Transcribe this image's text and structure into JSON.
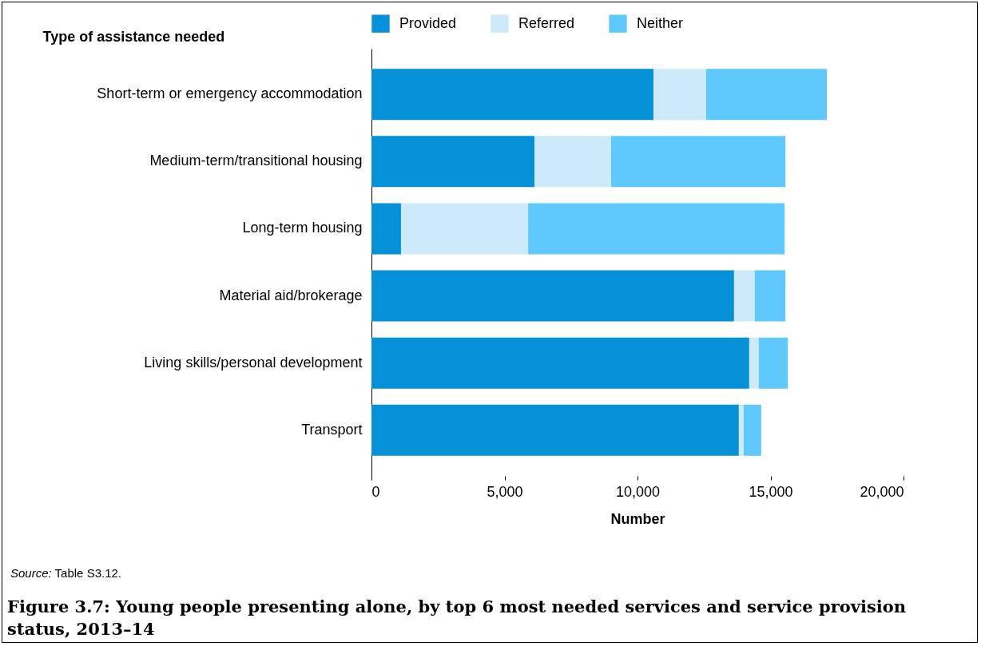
{
  "chart_data": {
    "type": "bar",
    "orientation": "horizontal",
    "stacked": true,
    "title": "Figure 3.7: Young people presenting alone, by top 6 most needed services and service provision status, 2013–14",
    "xlabel": "Number",
    "ylabel": "Type of assistance needed",
    "annotations": [
      "Source: Table S3.12."
    ],
    "categories": [
      "Short-term or emergency accommodation",
      "Medium-term/transitional housing",
      "Long-term housing",
      "Material aid/brokerage",
      "Living skills/personal development",
      "Transport"
    ],
    "series": [
      {
        "name": "Provided",
        "color": "#0590d8",
        "values": [
          10600,
          6130,
          1110,
          13630,
          14200,
          13810
        ]
      },
      {
        "name": "Referred",
        "color": "#cdeafa",
        "values": [
          1980,
          2880,
          4780,
          780,
          360,
          180
        ]
      },
      {
        "name": "Neither",
        "color": "#5fc8fc",
        "values": [
          4540,
          6550,
          9640,
          1150,
          1090,
          660
        ]
      }
    ],
    "xlim": [
      0,
      20000
    ],
    "xticks": [
      0,
      {
        "value": 5000,
        "label": "5,000"
      },
      {
        "value": 10000,
        "label": "10,000"
      },
      {
        "value": 15000,
        "label": "15,000"
      },
      {
        "value": 20000,
        "label": "20,000"
      }
    ],
    "grid": false,
    "legend": "top"
  }
}
